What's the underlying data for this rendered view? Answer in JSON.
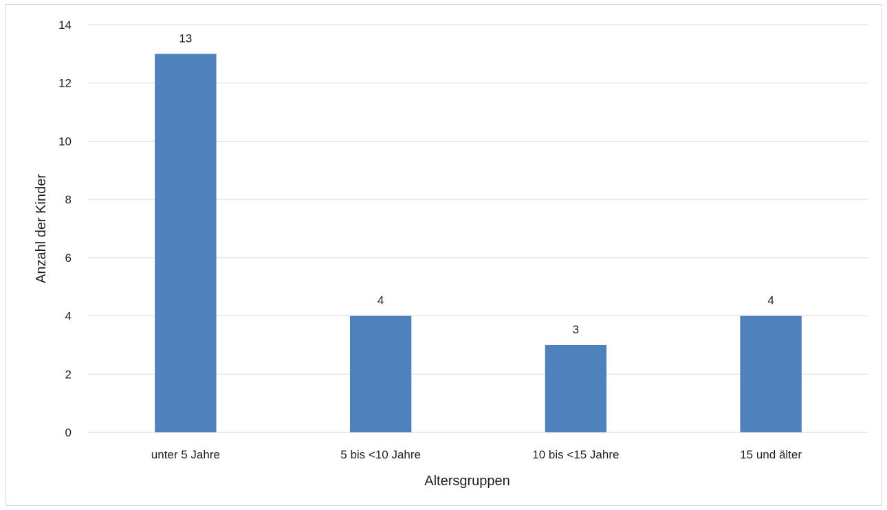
{
  "chart_data": {
    "type": "bar",
    "categories": [
      "unter 5 Jahre",
      "5 bis <10 Jahre",
      "10 bis <15 Jahre",
      "15 und älter"
    ],
    "values": [
      13,
      4,
      3,
      4
    ],
    "data_labels": [
      "13",
      "4",
      "3",
      "4"
    ],
    "xlabel": "Altersgruppen",
    "ylabel": "Anzahl der Kinder",
    "ylim": [
      0,
      14
    ],
    "yticks": [
      0,
      2,
      4,
      6,
      8,
      10,
      12,
      14
    ],
    "grid": true,
    "legend": "none",
    "bar_color": "#4f81bd",
    "grid_color": "#d9d9d9"
  }
}
